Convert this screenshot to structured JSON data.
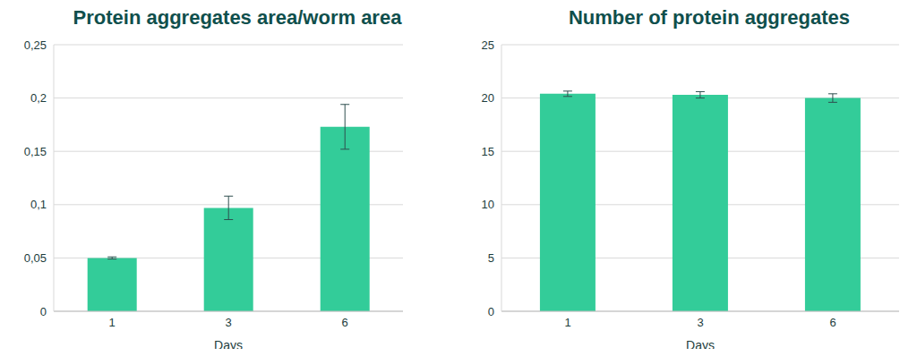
{
  "chart_data": [
    {
      "type": "bar",
      "title": "Protein aggregates area/worm area",
      "x_label": "Days",
      "categories": [
        "1",
        "3",
        "6"
      ],
      "values": [
        0.05,
        0.097,
        0.173
      ],
      "errors": [
        0.001,
        0.011,
        0.021
      ],
      "color": "#33cc99",
      "ylim": [
        0,
        0.25
      ],
      "yticks": [
        0,
        {
          "value": 0.05,
          "label": "0,05"
        },
        {
          "value": 0.1,
          "label": "0,1"
        },
        {
          "value": 0.15,
          "label": "0,15"
        },
        {
          "value": 0.2,
          "label": "0,2"
        },
        {
          "value": 0.25,
          "label": "0,25"
        }
      ],
      "grid": true
    },
    {
      "type": "bar",
      "title": "Number of protein aggregates",
      "x_label": "Days",
      "categories": [
        "1",
        "3",
        "6"
      ],
      "values": [
        20.4,
        20.3,
        20.0
      ],
      "errors": [
        0.25,
        0.3,
        0.4
      ],
      "color": "#33cc99",
      "ylim": [
        0,
        25
      ],
      "yticks": [
        0,
        5,
        10,
        15,
        20,
        25
      ],
      "grid": true
    }
  ]
}
